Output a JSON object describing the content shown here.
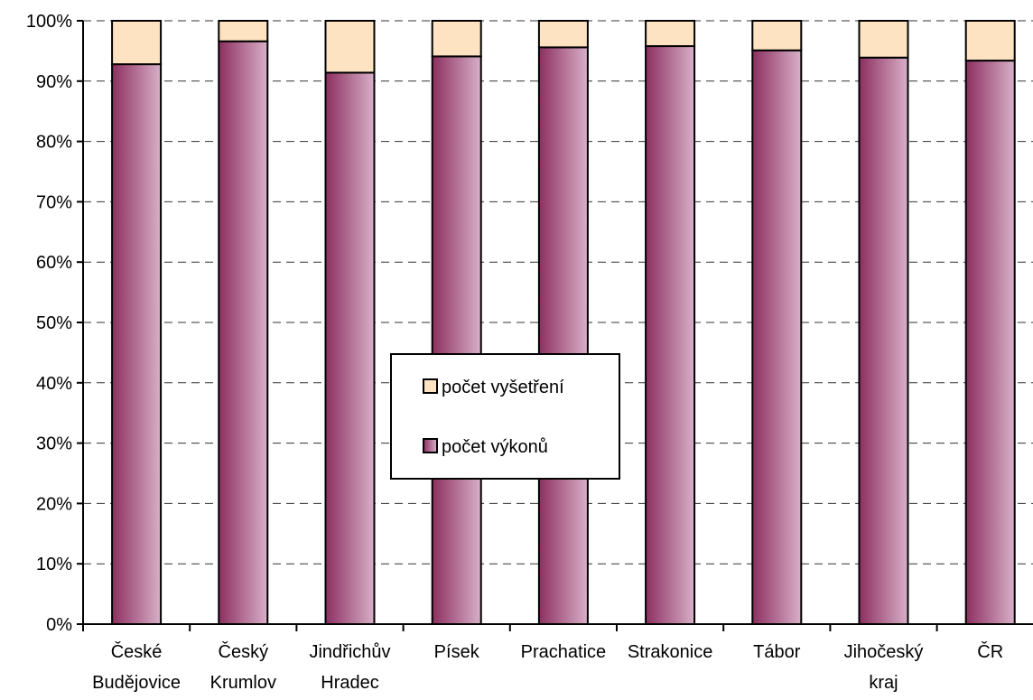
{
  "chart_data": {
    "type": "bar",
    "stacked": "percent",
    "categories": [
      [
        "České",
        "Budějovice"
      ],
      [
        "Český",
        "Krumlov"
      ],
      [
        "Jindřichův",
        "Hradec"
      ],
      [
        "Písek"
      ],
      [
        "Prachatice"
      ],
      [
        "Strakonice"
      ],
      [
        "Tábor"
      ],
      [
        "Jihočeský",
        "kraj"
      ],
      [
        "ČR"
      ]
    ],
    "series": [
      {
        "name": "počet výkonů",
        "values": [
          92.8,
          96.6,
          91.4,
          94.1,
          95.6,
          95.8,
          95.1,
          93.9,
          93.4
        ]
      },
      {
        "name": "počet vyšetření",
        "values": [
          7.2,
          3.4,
          8.6,
          5.9,
          4.4,
          4.2,
          4.9,
          6.1,
          6.6
        ]
      }
    ],
    "ylim": [
      0,
      100
    ],
    "yticks": [
      "0%",
      "10%",
      "20%",
      "30%",
      "40%",
      "50%",
      "60%",
      "70%",
      "80%",
      "90%",
      "100%"
    ],
    "grid": "horizontal dashed",
    "legend_position": "center",
    "colors": {
      "počet výkonů_dark": "#8c2f60",
      "počet výkonů_light": "#d8b0c8",
      "počet vyšetření": "#fde3c2"
    }
  }
}
